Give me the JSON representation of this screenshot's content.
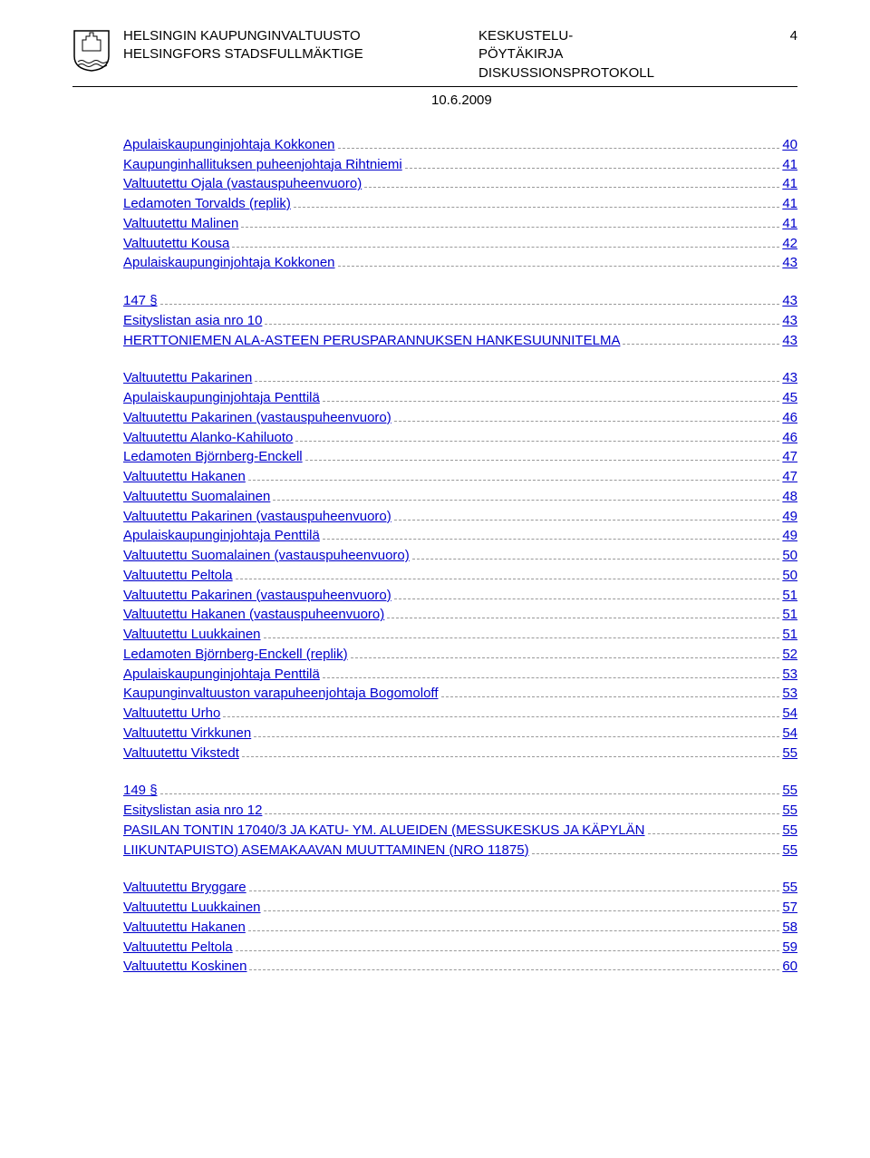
{
  "header": {
    "left_line1": "HELSINGIN KAUPUNGINVALTUUSTO",
    "left_line2": "HELSINGFORS STADSFULLMÄKTIGE",
    "mid_line1": "KESKUSTELU-",
    "mid_line2": "PÖYTÄKIRJA",
    "mid_line3": "DISKUSSIONSPROTOKOLL",
    "page_number": "4",
    "date": "10.6.2009"
  },
  "link_color": "#0000cc",
  "groups": [
    {
      "entries": [
        {
          "label": "Apulaiskaupunginjohtaja Kokkonen",
          "page": "40"
        },
        {
          "label": "Kaupunginhallituksen puheenjohtaja Rihtniemi",
          "page": "41"
        },
        {
          "label": "Valtuutettu Ojala (vastauspuheenvuoro)",
          "page": "41"
        },
        {
          "label": "Ledamoten Torvalds (replik)",
          "page": "41"
        },
        {
          "label": "Valtuutettu Malinen",
          "page": "41"
        },
        {
          "label": "Valtuutettu Kousa",
          "page": "42"
        },
        {
          "label": "Apulaiskaupunginjohtaja Kokkonen",
          "page": "43"
        }
      ]
    },
    {
      "entries": [
        {
          "label": "147 §",
          "page": "43"
        },
        {
          "label": "Esityslistan asia nro 10",
          "page": "43"
        },
        {
          "label": "HERTTONIEMEN ALA-ASTEEN PERUSPARANNUKSEN HANKESUUNNITELMA",
          "page": "43"
        }
      ]
    },
    {
      "entries": [
        {
          "label": "Valtuutettu Pakarinen",
          "page": "43"
        },
        {
          "label": "Apulaiskaupunginjohtaja Penttilä",
          "page": "45"
        },
        {
          "label": "Valtuutettu Pakarinen (vastauspuheenvuoro)",
          "page": "46"
        },
        {
          "label": "Valtuutettu Alanko-Kahiluoto",
          "page": "46"
        },
        {
          "label": "Ledamoten Björnberg-Enckell",
          "page": "47"
        },
        {
          "label": "Valtuutettu Hakanen",
          "page": "47"
        },
        {
          "label": "Valtuutettu Suomalainen",
          "page": "48"
        },
        {
          "label": "Valtuutettu Pakarinen (vastauspuheenvuoro)",
          "page": "49"
        },
        {
          "label": "Apulaiskaupunginjohtaja Penttilä",
          "page": "49"
        },
        {
          "label": "Valtuutettu Suomalainen (vastauspuheenvuoro)",
          "page": "50"
        },
        {
          "label": "Valtuutettu Peltola",
          "page": "50"
        },
        {
          "label": "Valtuutettu Pakarinen (vastauspuheenvuoro)",
          "page": "51"
        },
        {
          "label": "Valtuutettu Hakanen (vastauspuheenvuoro)",
          "page": "51"
        },
        {
          "label": "Valtuutettu Luukkainen",
          "page": "51"
        },
        {
          "label": "Ledamoten Björnberg-Enckell (replik)",
          "page": "52"
        },
        {
          "label": "Apulaiskaupunginjohtaja Penttilä",
          "page": "53"
        },
        {
          "label": "Kaupunginvaltuuston varapuheenjohtaja Bogomoloff",
          "page": "53"
        },
        {
          "label": "Valtuutettu Urho",
          "page": "54"
        },
        {
          "label": "Valtuutettu Virkkunen",
          "page": "54"
        },
        {
          "label": "Valtuutettu Vikstedt",
          "page": "55"
        }
      ]
    },
    {
      "entries": [
        {
          "label": "149 §",
          "page": "55"
        },
        {
          "label": "Esityslistan asia nro 12",
          "page": "55"
        },
        {
          "label": "PASILAN TONTIN 17040/3 JA KATU- YM. ALUEIDEN (MESSUKESKUS JA KÄPYLÄN",
          "page": "55"
        },
        {
          "label": "LIIKUNTAPUISTO) ASEMAKAAVAN MUUTTAMINEN (NRO 11875)",
          "page": "55"
        }
      ]
    },
    {
      "entries": [
        {
          "label": "Valtuutettu Bryggare",
          "page": "55"
        },
        {
          "label": "Valtuutettu Luukkainen",
          "page": "57"
        },
        {
          "label": "Valtuutettu Hakanen",
          "page": "58"
        },
        {
          "label": "Valtuutettu Peltola",
          "page": "59"
        },
        {
          "label": "Valtuutettu Koskinen",
          "page": "60"
        }
      ]
    }
  ]
}
